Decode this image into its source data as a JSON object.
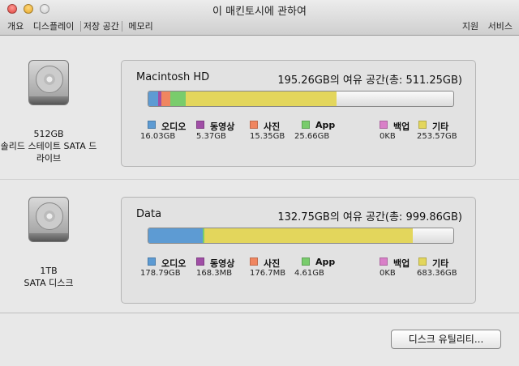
{
  "window": {
    "title": "이 매킨토시에 관하여",
    "lights": {
      "close": "#e0443e",
      "minimize": "#e6a82a",
      "zoom": "#cfcfcf"
    }
  },
  "toolbar": {
    "tabs": [
      "개요",
      "디스플레이",
      "저장 공간",
      "메모리"
    ],
    "selected": "저장 공간",
    "right": [
      "지원",
      "서비스"
    ]
  },
  "legend_labels": [
    "오디오",
    "동영상",
    "사진",
    "App",
    "백업",
    "기타"
  ],
  "colors": {
    "audio": "#5d9bd3",
    "video": "#a04ea6",
    "photo": "#f08660",
    "app": "#79cc6c",
    "backup": "#d980c8",
    "other": "#e3d65c"
  },
  "drives": [
    {
      "capacity": "512GB",
      "type": "솔리드 스테이트 SATA 드라이브",
      "name": "Macintosh HD",
      "free": "195.26GB의 여유 공간(총: 511.25GB)",
      "total_gb": 511.25,
      "usage": [
        {
          "label": "오디오",
          "value": "16.03GB",
          "gb": 16.03
        },
        {
          "label": "동영상",
          "value": "5.37GB",
          "gb": 5.37
        },
        {
          "label": "사진",
          "value": "15.35GB",
          "gb": 15.35
        },
        {
          "label": "App",
          "value": "25.66GB",
          "gb": 25.66
        },
        {
          "label": "백업",
          "value": "0KB",
          "gb": 0
        },
        {
          "label": "기타",
          "value": "253.57GB",
          "gb": 253.57
        }
      ]
    },
    {
      "capacity": "1TB",
      "type": "SATA 디스크",
      "name": "Data",
      "free": "132.75GB의 여유 공간(총: 999.86GB)",
      "total_gb": 999.86,
      "usage": [
        {
          "label": "오디오",
          "value": "178.79GB",
          "gb": 178.79
        },
        {
          "label": "동영상",
          "value": "168.3MB",
          "gb": 0.168
        },
        {
          "label": "사진",
          "value": "176.7MB",
          "gb": 0.177
        },
        {
          "label": "App",
          "value": "4.61GB",
          "gb": 4.61
        },
        {
          "label": "백업",
          "value": "0KB",
          "gb": 0
        },
        {
          "label": "기타",
          "value": "683.36GB",
          "gb": 683.36
        }
      ]
    }
  ],
  "button": {
    "disk_utility": "디스크 유틸리티..."
  }
}
